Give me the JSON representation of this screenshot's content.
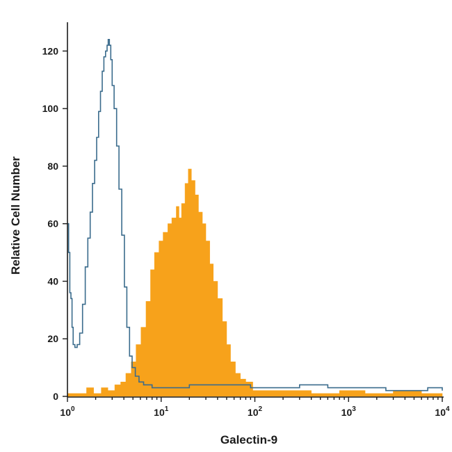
{
  "chart_data": {
    "type": "area",
    "xlabel": "Galectin-9",
    "ylabel": "Relative Cell Number",
    "xscale": "log",
    "xlim": [
      1,
      10000
    ],
    "ylim": [
      0,
      130
    ],
    "x_ticks": [
      {
        "value": 1,
        "base": "10",
        "exp": "0"
      },
      {
        "value": 10,
        "base": "10",
        "exp": "1"
      },
      {
        "value": 100,
        "base": "10",
        "exp": "2"
      },
      {
        "value": 1000,
        "base": "10",
        "exp": "3"
      },
      {
        "value": 10000,
        "base": "10",
        "exp": "4"
      }
    ],
    "y_ticks": [
      0,
      20,
      40,
      60,
      80,
      100,
      120
    ],
    "series": [
      {
        "style": "filled",
        "color": "#f7a21b",
        "points": [
          [
            1.0,
            1
          ],
          [
            1.3,
            1
          ],
          [
            1.6,
            3
          ],
          [
            1.9,
            1
          ],
          [
            2.3,
            3
          ],
          [
            2.7,
            2
          ],
          [
            3.2,
            4
          ],
          [
            3.7,
            5
          ],
          [
            4.2,
            8
          ],
          [
            4.8,
            12
          ],
          [
            5.4,
            18
          ],
          [
            6.1,
            24
          ],
          [
            6.9,
            33
          ],
          [
            7.7,
            44
          ],
          [
            8.5,
            50
          ],
          [
            9.5,
            54
          ],
          [
            10.5,
            57
          ],
          [
            11.8,
            60
          ],
          [
            13.0,
            62
          ],
          [
            14.5,
            66
          ],
          [
            15.5,
            62
          ],
          [
            16.5,
            67
          ],
          [
            18.0,
            74
          ],
          [
            19.5,
            79
          ],
          [
            21.0,
            75
          ],
          [
            23.0,
            70
          ],
          [
            25.0,
            64
          ],
          [
            27.5,
            60
          ],
          [
            30.0,
            54
          ],
          [
            33.0,
            46
          ],
          [
            36.0,
            40
          ],
          [
            40.0,
            34
          ],
          [
            45.0,
            26
          ],
          [
            50.0,
            18
          ],
          [
            55.0,
            12
          ],
          [
            62.0,
            8
          ],
          [
            70.0,
            6
          ],
          [
            80.0,
            5
          ],
          [
            95.0,
            2
          ],
          [
            120.0,
            2
          ],
          [
            200.0,
            2
          ],
          [
            400.0,
            1
          ],
          [
            800.0,
            2
          ],
          [
            1500.0,
            1
          ],
          [
            3000.0,
            2
          ],
          [
            6000.0,
            1
          ],
          [
            10000.0,
            1
          ]
        ]
      },
      {
        "style": "outline",
        "color": "#3a6b8c",
        "points": [
          [
            1.0,
            60
          ],
          [
            1.03,
            50
          ],
          [
            1.06,
            36
          ],
          [
            1.09,
            34
          ],
          [
            1.12,
            24
          ],
          [
            1.15,
            18
          ],
          [
            1.2,
            17
          ],
          [
            1.27,
            18
          ],
          [
            1.35,
            22
          ],
          [
            1.45,
            32
          ],
          [
            1.55,
            45
          ],
          [
            1.65,
            55
          ],
          [
            1.75,
            64
          ],
          [
            1.85,
            74
          ],
          [
            1.95,
            82
          ],
          [
            2.05,
            90
          ],
          [
            2.15,
            99
          ],
          [
            2.25,
            106
          ],
          [
            2.35,
            113
          ],
          [
            2.45,
            118
          ],
          [
            2.55,
            120
          ],
          [
            2.65,
            122
          ],
          [
            2.72,
            124
          ],
          [
            2.8,
            122
          ],
          [
            2.9,
            117
          ],
          [
            3.0,
            108
          ],
          [
            3.15,
            100
          ],
          [
            3.35,
            87
          ],
          [
            3.55,
            72
          ],
          [
            3.8,
            56
          ],
          [
            4.05,
            38
          ],
          [
            4.3,
            24
          ],
          [
            4.6,
            14
          ],
          [
            4.9,
            10
          ],
          [
            5.3,
            7
          ],
          [
            5.8,
            5
          ],
          [
            6.5,
            4
          ],
          [
            8.0,
            3
          ],
          [
            12.0,
            3
          ],
          [
            20.0,
            4
          ],
          [
            30.0,
            4
          ],
          [
            50.0,
            4
          ],
          [
            90.0,
            3
          ],
          [
            150.0,
            3
          ],
          [
            300.0,
            4
          ],
          [
            600.0,
            3
          ],
          [
            1200.0,
            3
          ],
          [
            2500.0,
            2
          ],
          [
            5000.0,
            2
          ],
          [
            7000.0,
            3
          ],
          [
            10000.0,
            2
          ]
        ]
      }
    ]
  }
}
